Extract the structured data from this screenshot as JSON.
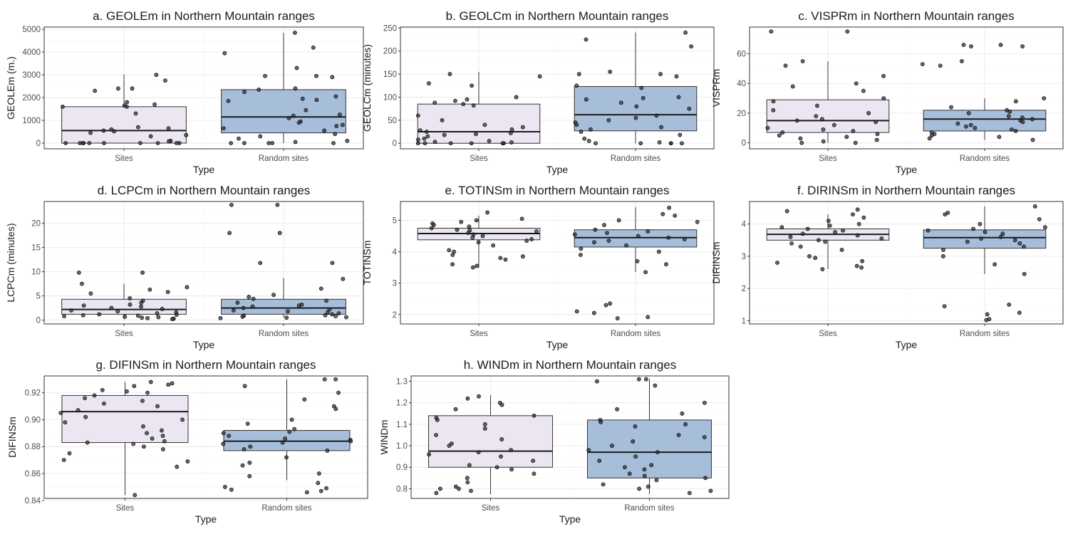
{
  "chart_data": [
    {
      "type": "box",
      "title": "a. GEOLEm in Northern Mountain ranges",
      "xlabel": "Type",
      "ylabel": "GEOLEm (m.)",
      "categories": [
        "Sites",
        "Random sites"
      ],
      "ylim": [
        -250,
        5100
      ],
      "yticks": [
        0,
        1000,
        2000,
        3000,
        4000,
        5000
      ],
      "yticklabels": [
        "0",
        "1000",
        "2000",
        "3000",
        "4000",
        "5000"
      ],
      "box_colors": [
        "#ebe6f1",
        "#a7bedb"
      ],
      "boxes": [
        {
          "whisker_low": 0,
          "q1": 0,
          "median": 550,
          "q3": 1600,
          "whisker_high": 3020
        },
        {
          "whisker_low": 0,
          "q1": 450,
          "median": 1150,
          "q3": 2350,
          "whisker_high": 4850
        }
      ],
      "points": [
        [
          0,
          1700,
          2400,
          2400,
          2300,
          2750,
          3000,
          1650,
          1800,
          1600,
          1600,
          1300,
          700,
          600,
          650,
          550,
          520,
          450,
          350,
          300,
          100,
          80,
          0,
          0,
          0,
          0,
          0,
          0,
          0,
          0,
          0
        ],
        [
          4850,
          3950,
          2950,
          2900,
          2250,
          2050,
          1950,
          1900,
          1850,
          1450,
          1250,
          1200,
          1100,
          950,
          900,
          800,
          750,
          650,
          550,
          400,
          300,
          200,
          100,
          50,
          4200,
          3300,
          2950,
          2400,
          2350,
          0,
          0,
          0,
          0,
          0
        ]
      ]
    },
    {
      "type": "box",
      "title": "b. GEOLCm in Northern Mountain ranges",
      "xlabel": "Type",
      "ylabel": "GEOLCm (minutes)",
      "categories": [
        "Sites",
        "Random sites"
      ],
      "ylim": [
        -12,
        252
      ],
      "yticks": [
        0,
        50,
        100,
        150,
        200,
        250
      ],
      "yticklabels": [
        "0",
        "50",
        "100",
        "150",
        "200",
        "250"
      ],
      "box_colors": [
        "#ebe6f1",
        "#a7bedb"
      ],
      "boxes": [
        {
          "whisker_low": 0,
          "q1": 0,
          "median": 25,
          "q3": 85,
          "whisker_high": 155
        },
        {
          "whisker_low": 0,
          "q1": 27,
          "median": 62,
          "q3": 123,
          "whisker_high": 240
        }
      ],
      "points": [
        [
          150,
          145,
          130,
          125,
          100,
          95,
          92,
          88,
          85,
          82,
          60,
          50,
          40,
          35,
          30,
          28,
          25,
          22,
          20,
          18,
          15,
          10,
          8,
          5,
          3,
          2,
          0,
          0,
          0,
          0,
          0,
          0
        ],
        [
          240,
          225,
          210,
          155,
          150,
          150,
          145,
          125,
          120,
          100,
          98,
          95,
          88,
          80,
          75,
          60,
          55,
          50,
          45,
          40,
          35,
          30,
          25,
          18,
          10,
          5,
          2,
          0,
          0,
          0,
          0,
          0
        ]
      ]
    },
    {
      "type": "box",
      "title": "c. VISPRm in Northern Mountain ranges",
      "xlabel": "Type",
      "ylabel": "VISPRm",
      "categories": [
        "Sites",
        "Random sites"
      ],
      "ylim": [
        -4,
        78
      ],
      "yticks": [
        0,
        20,
        40,
        60
      ],
      "yticklabels": [
        "0",
        "20",
        "40",
        "60"
      ],
      "box_colors": [
        "#ebe6f1",
        "#a7bedb"
      ],
      "boxes": [
        {
          "whisker_low": 0,
          "q1": 7,
          "median": 15,
          "q3": 29,
          "whisker_high": 55
        },
        {
          "whisker_low": 2,
          "q1": 8,
          "median": 16,
          "q3": 22,
          "whisker_high": 30
        }
      ],
      "points": [
        [
          75,
          75,
          55,
          52,
          45,
          40,
          38,
          35,
          30,
          28,
          25,
          22,
          20,
          18,
          16,
          15,
          14,
          12,
          10,
          9,
          8,
          7,
          6,
          5,
          4,
          3,
          2,
          1,
          0,
          0
        ],
        [
          66,
          66,
          65,
          65,
          55,
          53,
          52,
          30,
          28,
          24,
          22,
          21,
          20,
          18,
          17,
          16,
          15,
          14,
          13,
          12,
          11,
          10,
          9,
          8,
          7,
          6,
          5,
          4,
          3,
          2
        ]
      ]
    },
    {
      "type": "box",
      "title": "d. LCPCm in Northern Mountain ranges",
      "xlabel": "Type",
      "ylabel": "LCPCm (minutes)",
      "categories": [
        "Sites",
        "Random sites"
      ],
      "ylim": [
        -0.8,
        24.5
      ],
      "yticks": [
        0,
        5,
        10,
        15,
        20
      ],
      "yticklabels": [
        "0",
        "5",
        "10",
        "15",
        "20"
      ],
      "box_colors": [
        "#ebe6f1",
        "#a7bedb"
      ],
      "boxes": [
        {
          "whisker_low": 0.2,
          "q1": 1.2,
          "median": 2.2,
          "q3": 4.3,
          "whisker_high": 7.5
        },
        {
          "whisker_low": 0.5,
          "q1": 1.2,
          "median": 2.5,
          "q3": 4.3,
          "whisker_high": 8.7
        }
      ],
      "points": [
        [
          9.8,
          9.8,
          7.5,
          6.8,
          6.3,
          5.8,
          5.5,
          4.5,
          4.0,
          3.6,
          3.2,
          3.0,
          2.8,
          2.5,
          2.3,
          2.0,
          1.8,
          1.6,
          1.4,
          1.2,
          1.1,
          1.0,
          0.9,
          0.8,
          0.7,
          0.6,
          0.5,
          0.4,
          0.3,
          0.2
        ],
        [
          23.8,
          23.8,
          18.0,
          18.0,
          11.8,
          11.8,
          8.5,
          6.5,
          5.2,
          4.8,
          4.4,
          4.0,
          3.6,
          3.2,
          3.0,
          2.8,
          2.5,
          2.2,
          2.0,
          1.8,
          1.6,
          1.4,
          1.2,
          1.0,
          0.9,
          0.8,
          0.7,
          0.6,
          0.5,
          0.4
        ]
      ]
    },
    {
      "type": "box",
      "title": "e. TOTINSm in Northern Mountain ranges",
      "xlabel": "Type",
      "ylabel": "TOTINSm",
      "categories": [
        "Sites",
        "Random sites"
      ],
      "ylim": [
        1.7,
        5.6
      ],
      "yticks": [
        2,
        3,
        4,
        5
      ],
      "yticklabels": [
        "2",
        "3",
        "4",
        "5"
      ],
      "box_colors": [
        "#ebe6f1",
        "#a7bedb"
      ],
      "boxes": [
        {
          "whisker_low": 3.5,
          "q1": 4.38,
          "median": 4.58,
          "q3": 4.75,
          "whisker_high": 5.15
        },
        {
          "whisker_low": 3.35,
          "q1": 4.15,
          "median": 4.45,
          "q3": 4.7,
          "whisker_high": 5.42
        }
      ],
      "points": [
        [
          5.25,
          5.05,
          5.0,
          4.95,
          4.9,
          4.85,
          4.8,
          4.75,
          4.7,
          4.68,
          4.65,
          4.6,
          4.55,
          4.5,
          4.45,
          4.4,
          4.35,
          4.3,
          4.2,
          4.05,
          4.0,
          3.9,
          3.85,
          3.8,
          3.75,
          3.6,
          3.55,
          3.5
        ],
        [
          5.4,
          5.2,
          5.15,
          5.0,
          4.95,
          4.85,
          4.7,
          4.65,
          4.6,
          4.55,
          4.5,
          4.45,
          4.4,
          4.35,
          4.3,
          4.2,
          4.1,
          4.0,
          3.9,
          3.7,
          3.6,
          3.35,
          2.35,
          2.3,
          2.1,
          2.05,
          1.92,
          1.88
        ]
      ]
    },
    {
      "type": "box",
      "title": "f. DIRINSm in Northern Mountain ranges",
      "xlabel": "Type",
      "ylabel": "DIRINSm",
      "categories": [
        "Sites",
        "Random sites"
      ],
      "ylim": [
        0.9,
        4.7
      ],
      "yticks": [
        1,
        2,
        3,
        4
      ],
      "yticklabels": [
        "1",
        "2",
        "3",
        "4"
      ],
      "box_colors": [
        "#ebe6f1",
        "#a7bedb"
      ],
      "boxes": [
        {
          "whisker_low": 2.6,
          "q1": 3.5,
          "median": 3.68,
          "q3": 3.85,
          "whisker_high": 4.3
        },
        {
          "whisker_low": 2.45,
          "q1": 3.25,
          "median": 3.58,
          "q3": 3.82,
          "whisker_high": 4.55
        }
      ],
      "points": [
        [
          4.45,
          4.4,
          4.3,
          4.2,
          4.1,
          4.0,
          3.95,
          3.9,
          3.85,
          3.8,
          3.75,
          3.7,
          3.65,
          3.6,
          3.55,
          3.5,
          3.45,
          3.4,
          3.3,
          3.2,
          3.0,
          2.95,
          2.85,
          2.8,
          2.7,
          2.65,
          2.6
        ],
        [
          4.55,
          4.35,
          4.3,
          4.15,
          4.0,
          3.9,
          3.85,
          3.8,
          3.75,
          3.7,
          3.6,
          3.55,
          3.5,
          3.45,
          3.4,
          3.3,
          3.2,
          3.0,
          2.75,
          2.45,
          1.5,
          1.45,
          1.25,
          1.2,
          1.05,
          1.02
        ]
      ]
    },
    {
      "type": "box",
      "title": "g. DIFINSm in Northern Mountain ranges",
      "xlabel": "Type",
      "ylabel": "DIFINSm",
      "categories": [
        "Sites",
        "Random sites"
      ],
      "ylim": [
        0.8415,
        0.9325
      ],
      "yticks": [
        0.84,
        0.86,
        0.88,
        0.9,
        0.92
      ],
      "yticklabels": [
        "0.84",
        "0.86",
        "0.88",
        "0.90",
        "0.92"
      ],
      "box_colors": [
        "#ebe6f1",
        "#a7bedb"
      ],
      "boxes": [
        {
          "whisker_low": 0.844,
          "q1": 0.883,
          "median": 0.906,
          "q3": 0.918,
          "whisker_high": 0.928
        },
        {
          "whisker_low": 0.855,
          "q1": 0.877,
          "median": 0.884,
          "q3": 0.892,
          "whisker_high": 0.93
        }
      ],
      "points": [
        [
          0.928,
          0.927,
          0.926,
          0.925,
          0.922,
          0.921,
          0.92,
          0.918,
          0.916,
          0.914,
          0.912,
          0.91,
          0.907,
          0.905,
          0.902,
          0.9,
          0.898,
          0.895,
          0.892,
          0.89,
          0.888,
          0.886,
          0.884,
          0.883,
          0.882,
          0.88,
          0.878,
          0.875,
          0.87,
          0.869,
          0.865,
          0.844
        ],
        [
          0.93,
          0.93,
          0.925,
          0.92,
          0.915,
          0.91,
          0.908,
          0.9,
          0.897,
          0.893,
          0.891,
          0.89,
          0.888,
          0.886,
          0.885,
          0.884,
          0.883,
          0.882,
          0.88,
          0.878,
          0.877,
          0.872,
          0.868,
          0.866,
          0.86,
          0.858,
          0.853,
          0.85,
          0.849,
          0.848,
          0.847,
          0.846
        ]
      ]
    },
    {
      "type": "box",
      "title": "h. WINDm in Northern Mountain ranges",
      "xlabel": "Type",
      "ylabel": "WINDm",
      "categories": [
        "Sites",
        "Random sites"
      ],
      "ylim": [
        0.755,
        1.325
      ],
      "yticks": [
        0.8,
        0.9,
        1.0,
        1.1,
        1.2,
        1.3
      ],
      "yticklabels": [
        "0.8",
        "0.9",
        "1.0",
        "1.1",
        "1.2",
        "1.3"
      ],
      "box_colors": [
        "#ebe6f1",
        "#a7bedb"
      ],
      "boxes": [
        {
          "whisker_low": 0.775,
          "q1": 0.9,
          "median": 0.975,
          "q3": 1.14,
          "whisker_high": 1.235
        },
        {
          "whisker_low": 0.775,
          "q1": 0.85,
          "median": 0.97,
          "q3": 1.12,
          "whisker_high": 1.31
        }
      ],
      "points": [
        [
          1.23,
          1.22,
          1.2,
          1.19,
          1.17,
          1.14,
          1.13,
          1.12,
          1.1,
          1.08,
          1.05,
          1.03,
          1.01,
          1.0,
          0.98,
          0.97,
          0.96,
          0.95,
          0.93,
          0.91,
          0.9,
          0.89,
          0.87,
          0.85,
          0.83,
          0.81,
          0.8,
          0.8,
          0.79,
          0.78
        ],
        [
          1.31,
          1.31,
          1.3,
          1.28,
          1.2,
          1.17,
          1.15,
          1.12,
          1.11,
          1.1,
          1.09,
          1.05,
          1.04,
          1.02,
          1.0,
          0.98,
          0.97,
          0.95,
          0.93,
          0.91,
          0.9,
          0.89,
          0.87,
          0.86,
          0.85,
          0.84,
          0.82,
          0.81,
          0.8,
          0.79,
          0.78
        ]
      ]
    }
  ]
}
